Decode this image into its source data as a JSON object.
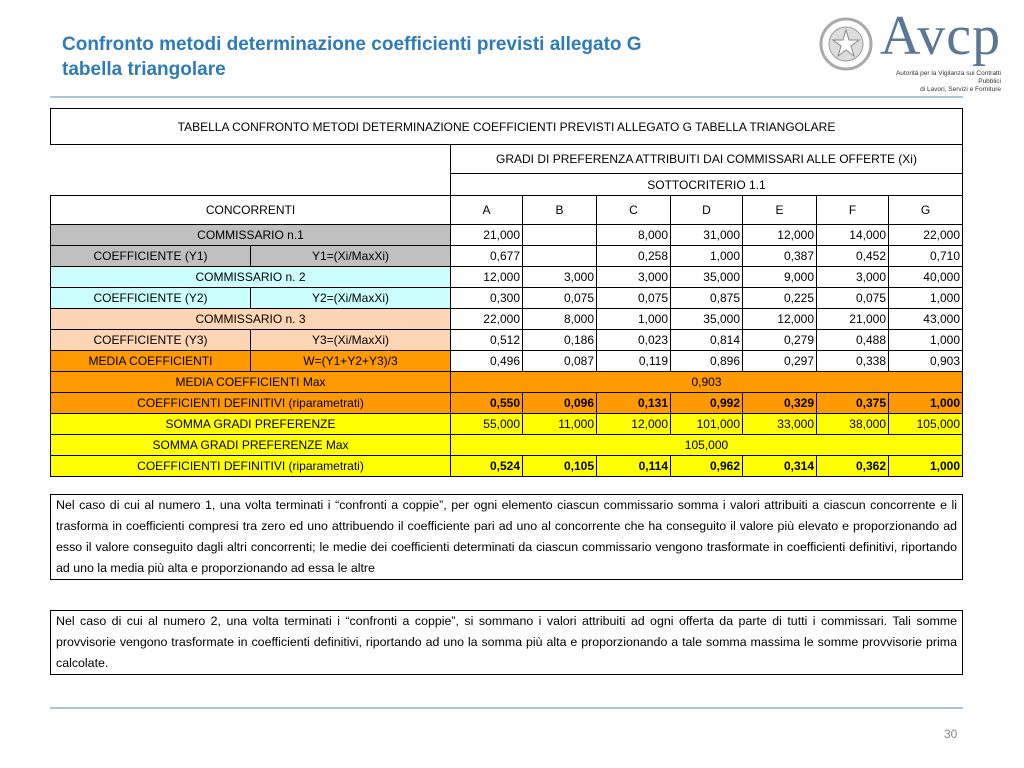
{
  "header": {
    "title": [
      "Confronto metodi determinazione coefficienti previsti allegato G",
      "tabella triangolare"
    ]
  },
  "logo": {
    "wordmark": "Avcp",
    "caption": [
      "Autorità per la Vigilanza sui Contratti Pubblici",
      "di Lavori, Servizi e Forniture"
    ]
  },
  "table": {
    "title": "TABELLA CONFRONTO METODI DETERMINAZIONE COEFFICIENTI PREVISTI ALLEGATO G TABELLA TRIANGOLARE",
    "group_header": "GRADI DI PREFERENZA ATTRIBUITI DAI COMMISSARI ALLE OFFERTE (Xi)",
    "subcriterion": "SOTTOCRITERIO  1.1",
    "label_header": "CONCORRENTI",
    "columns": [
      "A",
      "B",
      "C",
      "D",
      "E",
      "F",
      "G"
    ],
    "rows": [
      {
        "label": "COMMISSARIO n.1",
        "color": "#c0c0c0",
        "values": [
          "21,000",
          null,
          "8,000",
          "31,000",
          "12,000",
          "14,000",
          "22,000"
        ]
      },
      {
        "label": "COEFFICIENTE (Y1)",
        "formula": "Y1=(Xi/MaxXi)",
        "color": "#c0c0c0",
        "values": [
          "0,677",
          null,
          "0,258",
          "1,000",
          "0,387",
          "0,452",
          "0,710"
        ]
      },
      {
        "label": "COMMISSARIO n. 2",
        "color": "#ccffff",
        "values": [
          "12,000",
          "3,000",
          "3,000",
          "35,000",
          "9,000",
          "3,000",
          "40,000"
        ]
      },
      {
        "label": "COEFFICIENTE (Y2)",
        "formula": "Y2=(Xi/MaxXi)",
        "color": "#ccffff",
        "values": [
          "0,300",
          "0,075",
          "0,075",
          "0,875",
          "0,225",
          "0,075",
          "1,000"
        ]
      },
      {
        "label": "COMMISSARIO n. 3",
        "color": "#fcd5b4",
        "values": [
          "22,000",
          "8,000",
          "1,000",
          "35,000",
          "12,000",
          "21,000",
          "43,000"
        ]
      },
      {
        "label": "COEFFICIENTE (Y3)",
        "formula": "Y3=(Xi/MaxXi)",
        "color": "#fcd5b4",
        "values": [
          "0,512",
          "0,186",
          "0,023",
          "0,814",
          "0,279",
          "0,488",
          "1,000"
        ]
      },
      {
        "label": "MEDIA COEFFICIENTI",
        "formula": "W=(Y1+Y2+Y3)/3",
        "color": "#ff9900",
        "values": [
          "0,496",
          "0,087",
          "0,119",
          "0,896",
          "0,297",
          "0,338",
          "0,903"
        ]
      },
      {
        "label": "MEDIA COEFFICIENTI Max",
        "color": "#ff9900",
        "value_color": "#ff9900",
        "total": "0,903"
      },
      {
        "label": "COEFFICIENTI DEFINITIVI (riparametrati)",
        "color": "#ff9900",
        "value_color": "#ff9900",
        "bold": true,
        "values": [
          "0,550",
          "0,096",
          "0,131",
          "0,992",
          "0,329",
          "0,375",
          "1,000"
        ]
      },
      {
        "label": "SOMMA GRADI PREFERENZE",
        "color": "#ffff00",
        "value_color": "#ffff00",
        "values": [
          "55,000",
          "11,000",
          "12,000",
          "101,000",
          "33,000",
          "38,000",
          "105,000"
        ]
      },
      {
        "label": "SOMMA GRADI PREFERENZE Max",
        "color": "#ffff00",
        "value_color": "#ffff00",
        "total": "105,000"
      },
      {
        "label": "COEFFICIENTI DEFINITIVI (riparametrati)",
        "color": "#ffff00",
        "value_color": "#ffff00",
        "bold": true,
        "values": [
          "0,524",
          "0,105",
          "0,114",
          "0,962",
          "0,314",
          "0,362",
          "1,000"
        ]
      }
    ]
  },
  "notes": [
    "Nel caso di cui al numero 1, una volta terminati i “confronti a coppie”, per ogni elemento ciascun commissario somma i valori attribuiti a ciascun concorrente e li trasforma in coefficienti compresi tra zero ed uno attribuendo il coefficiente pari ad uno al concorrente che ha conseguito il valore più elevato e proporzionando ad esso il valore conseguito dagli altri concorrenti; le medie dei coefficienti determinati da ciascun commissario vengono trasformate in coefficienti definitivi, riportando ad uno la media più alta e proporzionando ad essa le altre",
    "Nel caso di cui al numero 2, una volta terminati i “confronti a coppie”, si sommano i valori attribuiti ad ogni offerta da parte di tutti i commissari. Tali somme provvisorie vengono trasformate in coefficienti definitivi, riportando ad uno la somma più alta e proporzionando a tale somma massima le somme provvisorie prima calcolate."
  ],
  "page_number": "30"
}
